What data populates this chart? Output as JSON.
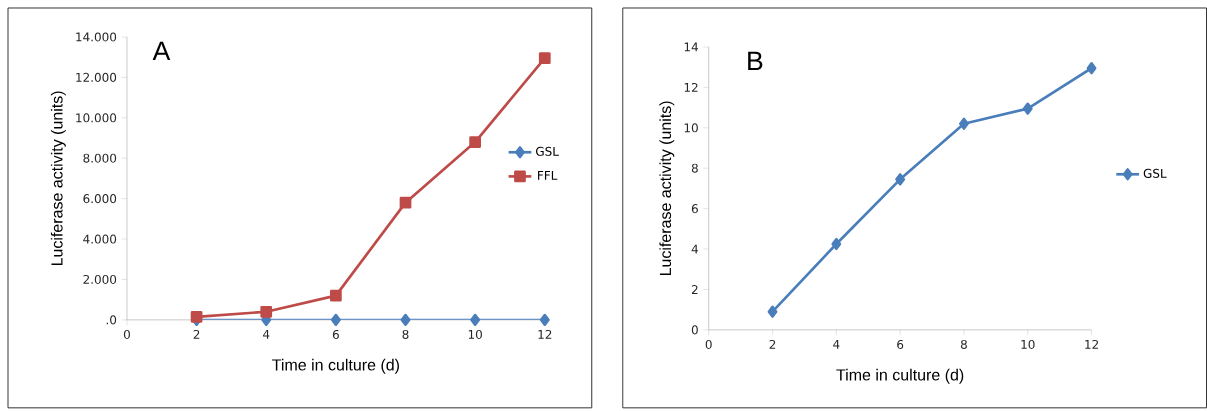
{
  "chart_data": [
    {
      "type": "line",
      "title": "A",
      "xlabel": "Time in culture (d)",
      "ylabel": "Luciferase activity (units)",
      "x": [
        2,
        4,
        6,
        8,
        10,
        12
      ],
      "series": [
        {
          "name": "GSL",
          "color": "#4a7ebb",
          "marker": "diamond",
          "values": [
            0,
            0,
            0,
            0,
            0,
            0
          ]
        },
        {
          "name": "FFL",
          "color": "#be4b48",
          "marker": "square",
          "values": [
            150,
            400,
            1200,
            5800,
            8800,
            12950
          ]
        }
      ],
      "xlim": [
        0,
        12
      ],
      "ylim": [
        0,
        14000
      ],
      "xticks": [
        0,
        2,
        4,
        6,
        8,
        10,
        12
      ],
      "yticks": [
        {
          "value": 0,
          "label": ".0"
        },
        {
          "value": 2000,
          "label": "2.000"
        },
        {
          "value": 4000,
          "label": "4.000"
        },
        {
          "value": 6000,
          "label": "6.000"
        },
        {
          "value": 8000,
          "label": "8.000"
        },
        {
          "value": 10000,
          "label": "10.000"
        },
        {
          "value": 12000,
          "label": "12.000"
        },
        {
          "value": 14000,
          "label": "14.000"
        }
      ],
      "grid": false,
      "legend": "right",
      "line_style": "solid"
    },
    {
      "type": "line",
      "title": "B",
      "xlabel": "Time in culture (d)",
      "ylabel": "Luciferase activity (units)",
      "x": [
        2,
        4,
        6,
        8,
        10,
        12
      ],
      "series": [
        {
          "name": "GSL",
          "color": "#4a7ebb",
          "marker": "diamond",
          "values": [
            0.9,
            4.25,
            7.45,
            10.2,
            10.95,
            12.95
          ]
        }
      ],
      "xlim": [
        0,
        12
      ],
      "ylim": [
        0,
        14
      ],
      "xticks": [
        0,
        2,
        4,
        6,
        8,
        10,
        12
      ],
      "yticks": [
        0,
        2,
        4,
        6,
        8,
        10,
        12,
        14
      ],
      "grid": false,
      "legend": "right",
      "line_style": "solid"
    }
  ]
}
